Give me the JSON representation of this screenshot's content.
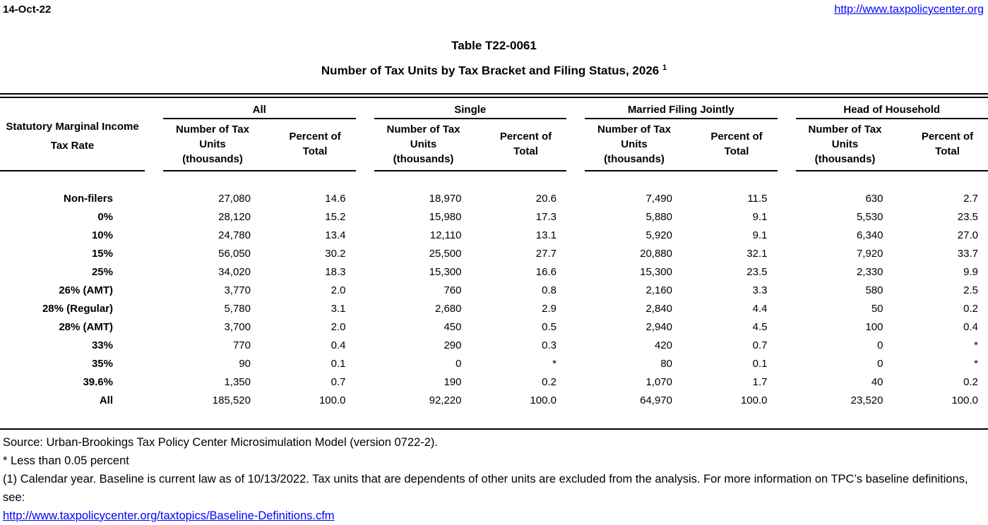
{
  "page": {
    "date": "14-Oct-22",
    "header_link": "http://www.taxpolicycenter.org",
    "link_color": "#0000FF"
  },
  "title": {
    "line1": "Table T22-0061",
    "line2": "Number of Tax Units by Tax Bracket and Filing Status, 2026",
    "footnote_marker": "1"
  },
  "table": {
    "stub_header": "Statutory Marginal Income Tax Rate",
    "groups": [
      {
        "label": "All"
      },
      {
        "label": "Single"
      },
      {
        "label": "Married Filing Jointly"
      },
      {
        "label": "Head of Household"
      }
    ],
    "col_subheaders": [
      "Number of Tax Units (thousands)",
      "Percent of Total"
    ],
    "rows": [
      {
        "label": "Non-filers",
        "values": [
          "27,080",
          "14.6",
          "18,970",
          "20.6",
          "7,490",
          "11.5",
          "630",
          "2.7"
        ]
      },
      {
        "label": "0%",
        "values": [
          "28,120",
          "15.2",
          "15,980",
          "17.3",
          "5,880",
          "9.1",
          "5,530",
          "23.5"
        ]
      },
      {
        "label": "10%",
        "values": [
          "24,780",
          "13.4",
          "12,110",
          "13.1",
          "5,920",
          "9.1",
          "6,340",
          "27.0"
        ]
      },
      {
        "label": "15%",
        "values": [
          "56,050",
          "30.2",
          "25,500",
          "27.7",
          "20,880",
          "32.1",
          "7,920",
          "33.7"
        ]
      },
      {
        "label": "25%",
        "values": [
          "34,020",
          "18.3",
          "15,300",
          "16.6",
          "15,300",
          "23.5",
          "2,330",
          "9.9"
        ]
      },
      {
        "label": "26% (AMT)",
        "values": [
          "3,770",
          "2.0",
          "760",
          "0.8",
          "2,160",
          "3.3",
          "580",
          "2.5"
        ]
      },
      {
        "label": "28% (Regular)",
        "values": [
          "5,780",
          "3.1",
          "2,680",
          "2.9",
          "2,840",
          "4.4",
          "50",
          "0.2"
        ]
      },
      {
        "label": "28% (AMT)",
        "values": [
          "3,700",
          "2.0",
          "450",
          "0.5",
          "2,940",
          "4.5",
          "100",
          "0.4"
        ]
      },
      {
        "label": "33%",
        "values": [
          "770",
          "0.4",
          "290",
          "0.3",
          "420",
          "0.7",
          "0",
          "*"
        ]
      },
      {
        "label": "35%",
        "values": [
          "90",
          "0.1",
          "0",
          "*",
          "80",
          "0.1",
          "0",
          "*"
        ]
      },
      {
        "label": "39.6%",
        "values": [
          "1,350",
          "0.7",
          "190",
          "0.2",
          "1,070",
          "1.7",
          "40",
          "0.2"
        ]
      },
      {
        "label": "All",
        "values": [
          "185,520",
          "100.0",
          "92,220",
          "100.0",
          "64,970",
          "100.0",
          "23,520",
          "100.0"
        ]
      }
    ]
  },
  "footer": {
    "source": "Source: Urban-Brookings Tax Policy Center Microsimulation Model (version 0722-2).",
    "asterisk": "* Less than 0.05 percent",
    "footnote1": "(1) Calendar year. Baseline is current law as of 10/13/2022. Tax units that are dependents of other units are excluded from the analysis. For more information on TPC’s baseline definitions, see:",
    "link": "http://www.taxpolicycenter.org/taxtopics/Baseline-Definitions.cfm"
  }
}
